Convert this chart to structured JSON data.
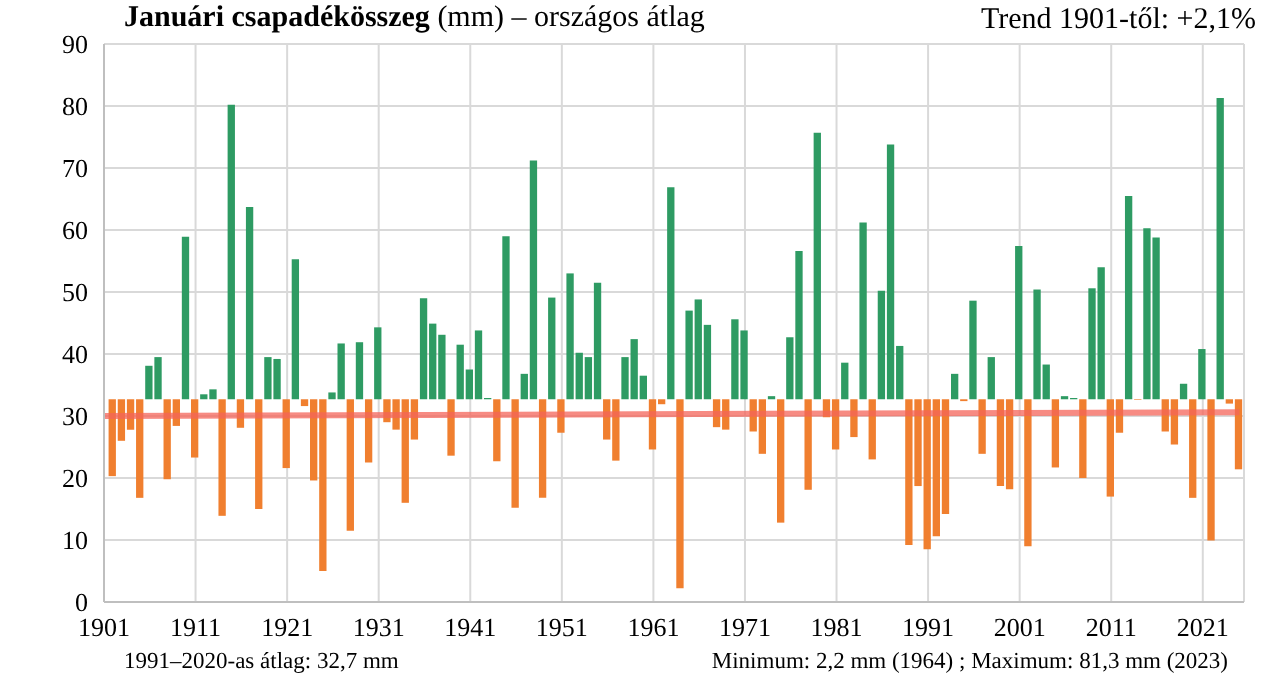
{
  "chart_data": {
    "type": "bar",
    "title": "Januári csapadékösszeg",
    "subtitle": "(mm) – országos átlag",
    "annotations": [
      "Trend 1901-től: +2,1%",
      "1991–2020-as átlag: 32,7 mm",
      "Minimum:  2,2 mm (1964) ; Maximum:  81,3 mm (2023)"
    ],
    "x": [
      1902,
      1903,
      1904,
      1905,
      1906,
      1907,
      1908,
      1909,
      1910,
      1911,
      1912,
      1913,
      1914,
      1915,
      1916,
      1917,
      1918,
      1919,
      1920,
      1921,
      1922,
      1923,
      1924,
      1925,
      1926,
      1927,
      1928,
      1929,
      1930,
      1931,
      1932,
      1933,
      1934,
      1935,
      1936,
      1937,
      1938,
      1939,
      1940,
      1941,
      1942,
      1943,
      1944,
      1945,
      1946,
      1947,
      1948,
      1949,
      1950,
      1951,
      1952,
      1953,
      1954,
      1955,
      1956,
      1957,
      1958,
      1959,
      1960,
      1961,
      1962,
      1963,
      1964,
      1965,
      1966,
      1967,
      1968,
      1969,
      1970,
      1971,
      1972,
      1973,
      1974,
      1975,
      1976,
      1977,
      1978,
      1979,
      1980,
      1981,
      1982,
      1983,
      1984,
      1985,
      1986,
      1987,
      1988,
      1989,
      1990,
      1991,
      1992,
      1993,
      1994,
      1995,
      1996,
      1997,
      1998,
      1999,
      2000,
      2001,
      2002,
      2003,
      2004,
      2005,
      2006,
      2007,
      2008,
      2009,
      2010,
      2011,
      2012,
      2013,
      2014,
      2015,
      2016,
      2017,
      2018,
      2019,
      2020,
      2021,
      2022,
      2023,
      2024,
      2025
    ],
    "series": [
      {
        "base": [
          32.7,
          32.7,
          32.7,
          32.7,
          32.7,
          32.7,
          32.7,
          32.7,
          32.7,
          32.7,
          32.7,
          32.7,
          32.7,
          32.7,
          32.7,
          32.7,
          32.7,
          32.7,
          32.7,
          32.7,
          32.7,
          32.7,
          32.7,
          32.7,
          32.7,
          32.7,
          32.7,
          32.7,
          32.7,
          32.7,
          32.7,
          32.7,
          32.7,
          32.7,
          32.7,
          32.7,
          32.7,
          32.7,
          32.7,
          32.7,
          32.7,
          32.7,
          32.7,
          32.7,
          32.7,
          32.7,
          32.7,
          32.7,
          32.7,
          32.7,
          32.7,
          32.7,
          32.7,
          32.7,
          32.7,
          32.7,
          32.7,
          32.7,
          32.7,
          32.7,
          32.7,
          32.7,
          32.7,
          32.7,
          32.7,
          32.7,
          32.7,
          32.7,
          32.7,
          32.7,
          32.7,
          32.7,
          32.7,
          32.7,
          32.7,
          32.7,
          32.7,
          32.7,
          32.7,
          32.7,
          32.7,
          32.7,
          32.7,
          32.7,
          32.7,
          32.7,
          32.7,
          32.7,
          32.7,
          32.7,
          32.7,
          32.7,
          32.7,
          32.7,
          32.7,
          32.7,
          32.7,
          32.7,
          32.7,
          32.7,
          32.7,
          32.7,
          32.7,
          32.7,
          32.7,
          32.7,
          32.7,
          32.7,
          32.7,
          32.7,
          32.7,
          32.7,
          32.7,
          32.7,
          32.7,
          32.7,
          32.7,
          32.7,
          32.7,
          32.7,
          32.7,
          32.7,
          32.7,
          32.7
        ],
        "values": [
          -12.4,
          -6.7,
          -4.9,
          -15.9,
          5.4,
          6.8,
          -12.9,
          -4.3,
          26.2,
          -9.4,
          0.8,
          1.6,
          -18.8,
          47.5,
          -4.6,
          31.0,
          -17.7,
          6.8,
          6.5,
          -11.1,
          22.6,
          -1.1,
          -13.1,
          -27.7,
          1.1,
          9.0,
          -21.2,
          9.2,
          -10.2,
          11.6,
          -3.7,
          -4.9,
          -16.7,
          -6.5,
          16.3,
          12.2,
          10.4,
          -9.1,
          8.8,
          4.8,
          11.1,
          0.2,
          -10.0,
          26.3,
          -17.5,
          4.1,
          38.5,
          -15.9,
          16.4,
          -5.4,
          20.3,
          7.5,
          6.8,
          18.8,
          -6.5,
          -9.9,
          6.8,
          9.7,
          3.8,
          -8.1,
          -0.8,
          34.2,
          -30.5,
          14.3,
          16.1,
          12.0,
          -4.5,
          -4.9,
          12.9,
          11.1,
          -5.2,
          -8.8,
          0.5,
          -19.9,
          10.0,
          23.9,
          -14.6,
          43.0,
          -2.9,
          -8.1,
          5.9,
          -6.1,
          28.5,
          -9.7,
          17.5,
          41.1,
          8.6,
          -23.5,
          -14.0,
          -24.2,
          -22.1,
          -18.5,
          4.1,
          -0.3,
          15.9,
          -8.8,
          6.8,
          -14.0,
          -14.5,
          24.7,
          -23.7,
          17.7,
          5.6,
          -11.0,
          0.5,
          0.2,
          -12.7,
          17.9,
          21.3,
          -15.7,
          -5.4,
          32.8,
          -0.1,
          27.6,
          26.1,
          -5.2,
          -7.3,
          2.5,
          -15.9,
          8.1,
          -22.8,
          48.6,
          -0.7,
          -11.3
        ],
        "colors": [
          "#f07f2f",
          "#f07f2f",
          "#f07f2f",
          "#f07f2f",
          "#2e9b63",
          "#2e9b63",
          "#f07f2f",
          "#f07f2f",
          "#2e9b63",
          "#f07f2f",
          "#2e9b63",
          "#2e9b63",
          "#f07f2f",
          "#2e9b63",
          "#f07f2f",
          "#2e9b63",
          "#f07f2f",
          "#2e9b63",
          "#2e9b63",
          "#f07f2f",
          "#2e9b63",
          "#f07f2f",
          "#f07f2f",
          "#f07f2f",
          "#2e9b63",
          "#2e9b63",
          "#f07f2f",
          "#2e9b63",
          "#f07f2f",
          "#2e9b63",
          "#f07f2f",
          "#f07f2f",
          "#f07f2f",
          "#f07f2f",
          "#2e9b63",
          "#2e9b63",
          "#2e9b63",
          "#f07f2f",
          "#2e9b63",
          "#2e9b63",
          "#2e9b63",
          "#2e9b63",
          "#f07f2f",
          "#2e9b63",
          "#f07f2f",
          "#2e9b63",
          "#2e9b63",
          "#f07f2f",
          "#2e9b63",
          "#f07f2f",
          "#2e9b63",
          "#2e9b63",
          "#2e9b63",
          "#2e9b63",
          "#f07f2f",
          "#f07f2f",
          "#2e9b63",
          "#2e9b63",
          "#2e9b63",
          "#f07f2f",
          "#f07f2f",
          "#2e9b63",
          "#f07f2f",
          "#2e9b63",
          "#2e9b63",
          "#2e9b63",
          "#f07f2f",
          "#f07f2f",
          "#2e9b63",
          "#2e9b63",
          "#f07f2f",
          "#f07f2f",
          "#2e9b63",
          "#f07f2f",
          "#2e9b63",
          "#2e9b63",
          "#f07f2f",
          "#2e9b63",
          "#f07f2f",
          "#f07f2f",
          "#2e9b63",
          "#f07f2f",
          "#2e9b63",
          "#f07f2f",
          "#2e9b63",
          "#2e9b63",
          "#2e9b63",
          "#f07f2f",
          "#f07f2f",
          "#f07f2f",
          "#f07f2f",
          "#f07f2f",
          "#2e9b63",
          "#f07f2f",
          "#2e9b63",
          "#f07f2f",
          "#2e9b63",
          "#f07f2f",
          "#f07f2f",
          "#2e9b63",
          "#f07f2f",
          "#2e9b63",
          "#2e9b63",
          "#f07f2f",
          "#2e9b63",
          "#2e9b63",
          "#f07f2f",
          "#2e9b63",
          "#2e9b63",
          "#f07f2f",
          "#f07f2f",
          "#2e9b63",
          "#f07f2f",
          "#2e9b63",
          "#2e9b63",
          "#f07f2f",
          "#f07f2f",
          "#2e9b63",
          "#f07f2f",
          "#2e9b63",
          "#f07f2f",
          "#2e9b63",
          "#f07f2f",
          "#f07f2f"
        ]
      },
      {
        "type": "line",
        "x": [
          1901,
          2025
        ],
        "values": [
          30.0,
          30.6
        ],
        "color": "#f4645a"
      }
    ],
    "xlim": [
      1901,
      2025.5
    ],
    "xticks": [
      1901,
      1911,
      1921,
      1931,
      1941,
      1951,
      1961,
      1971,
      1981,
      1991,
      2001,
      2011,
      2021
    ],
    "ylim": [
      0,
      90
    ],
    "yticks": [
      0,
      10,
      20,
      30,
      40,
      50,
      60,
      70,
      80,
      90
    ],
    "grid": true,
    "legend": false
  }
}
